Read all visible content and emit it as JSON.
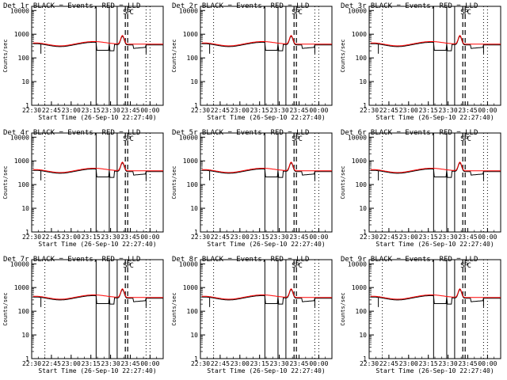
{
  "figure": {
    "ylabel": "Counts/sec",
    "xlabel": "Start Time (26-Sep-10 22:27:40)",
    "x_tick_labels": [
      "22:30",
      "22:45",
      "23:00",
      "23:15",
      "23:30",
      "23:45",
      "00:00"
    ],
    "y_tick_labels": [
      "1",
      "10",
      "100",
      "1000",
      "10000"
    ],
    "marker_labels": [
      "S",
      "P",
      "C"
    ]
  },
  "chart_data": [
    {
      "type": "line",
      "title": "Det 1r BLACK = Events, RED = LLD",
      "xlim": [
        "22:30",
        "00:10"
      ],
      "ylim": [
        1,
        15000
      ],
      "yscale": "log",
      "series": [
        {
          "name": "BLACK = Events",
          "color": "#000000"
        },
        {
          "name": "RED = LLD",
          "color": "#ff0000"
        }
      ]
    },
    {
      "type": "line",
      "title": "Det 2r BLACK = Events, RED = LLD",
      "xlim": [
        "22:30",
        "00:10"
      ],
      "ylim": [
        1,
        15000
      ],
      "yscale": "log",
      "series": [
        {
          "name": "BLACK = Events",
          "color": "#000000"
        },
        {
          "name": "RED = LLD",
          "color": "#ff0000"
        }
      ]
    },
    {
      "type": "line",
      "title": "Det 3r BLACK = Events, RED = LLD",
      "xlim": [
        "22:30",
        "00:10"
      ],
      "ylim": [
        1,
        15000
      ],
      "yscale": "log",
      "series": [
        {
          "name": "BLACK = Events",
          "color": "#000000"
        },
        {
          "name": "RED = LLD",
          "color": "#ff0000"
        }
      ]
    },
    {
      "type": "line",
      "title": "Det 4r BLACK = Events, RED = LLD",
      "xlim": [
        "22:30",
        "00:10"
      ],
      "ylim": [
        1,
        15000
      ],
      "yscale": "log",
      "series": [
        {
          "name": "BLACK = Events",
          "color": "#000000"
        },
        {
          "name": "RED = LLD",
          "color": "#ff0000"
        }
      ]
    },
    {
      "type": "line",
      "title": "Det 5r BLACK = Events, RED = LLD",
      "xlim": [
        "22:30",
        "00:10"
      ],
      "ylim": [
        1,
        15000
      ],
      "yscale": "log",
      "series": [
        {
          "name": "BLACK = Events",
          "color": "#000000"
        },
        {
          "name": "RED = LLD",
          "color": "#ff0000"
        }
      ]
    },
    {
      "type": "line",
      "title": "Det 6r BLACK = Events, RED = LLD",
      "xlim": [
        "22:30",
        "00:10"
      ],
      "ylim": [
        1,
        15000
      ],
      "yscale": "log",
      "series": [
        {
          "name": "BLACK = Events",
          "color": "#000000"
        },
        {
          "name": "RED = LLD",
          "color": "#ff0000"
        }
      ]
    },
    {
      "type": "line",
      "title": "Det 7r BLACK = Events, RED = LLD",
      "xlim": [
        "22:30",
        "00:10"
      ],
      "ylim": [
        1,
        15000
      ],
      "yscale": "log",
      "series": [
        {
          "name": "BLACK = Events",
          "color": "#000000"
        },
        {
          "name": "RED = LLD",
          "color": "#ff0000"
        }
      ]
    },
    {
      "type": "line",
      "title": "Det 8r BLACK = Events, RED = LLD",
      "xlim": [
        "22:30",
        "00:10"
      ],
      "ylim": [
        1,
        15000
      ],
      "yscale": "log",
      "series": [
        {
          "name": "BLACK = Events",
          "color": "#000000"
        },
        {
          "name": "RED = LLD",
          "color": "#ff0000"
        }
      ]
    },
    {
      "type": "line",
      "title": "Det 9r BLACK = Events, RED = LLD",
      "xlim": [
        "22:30",
        "00:10"
      ],
      "ylim": [
        1,
        15000
      ],
      "yscale": "log",
      "series": [
        {
          "name": "BLACK = Events",
          "color": "#000000"
        },
        {
          "name": "RED = LLD",
          "color": "#ff0000"
        }
      ]
    }
  ]
}
